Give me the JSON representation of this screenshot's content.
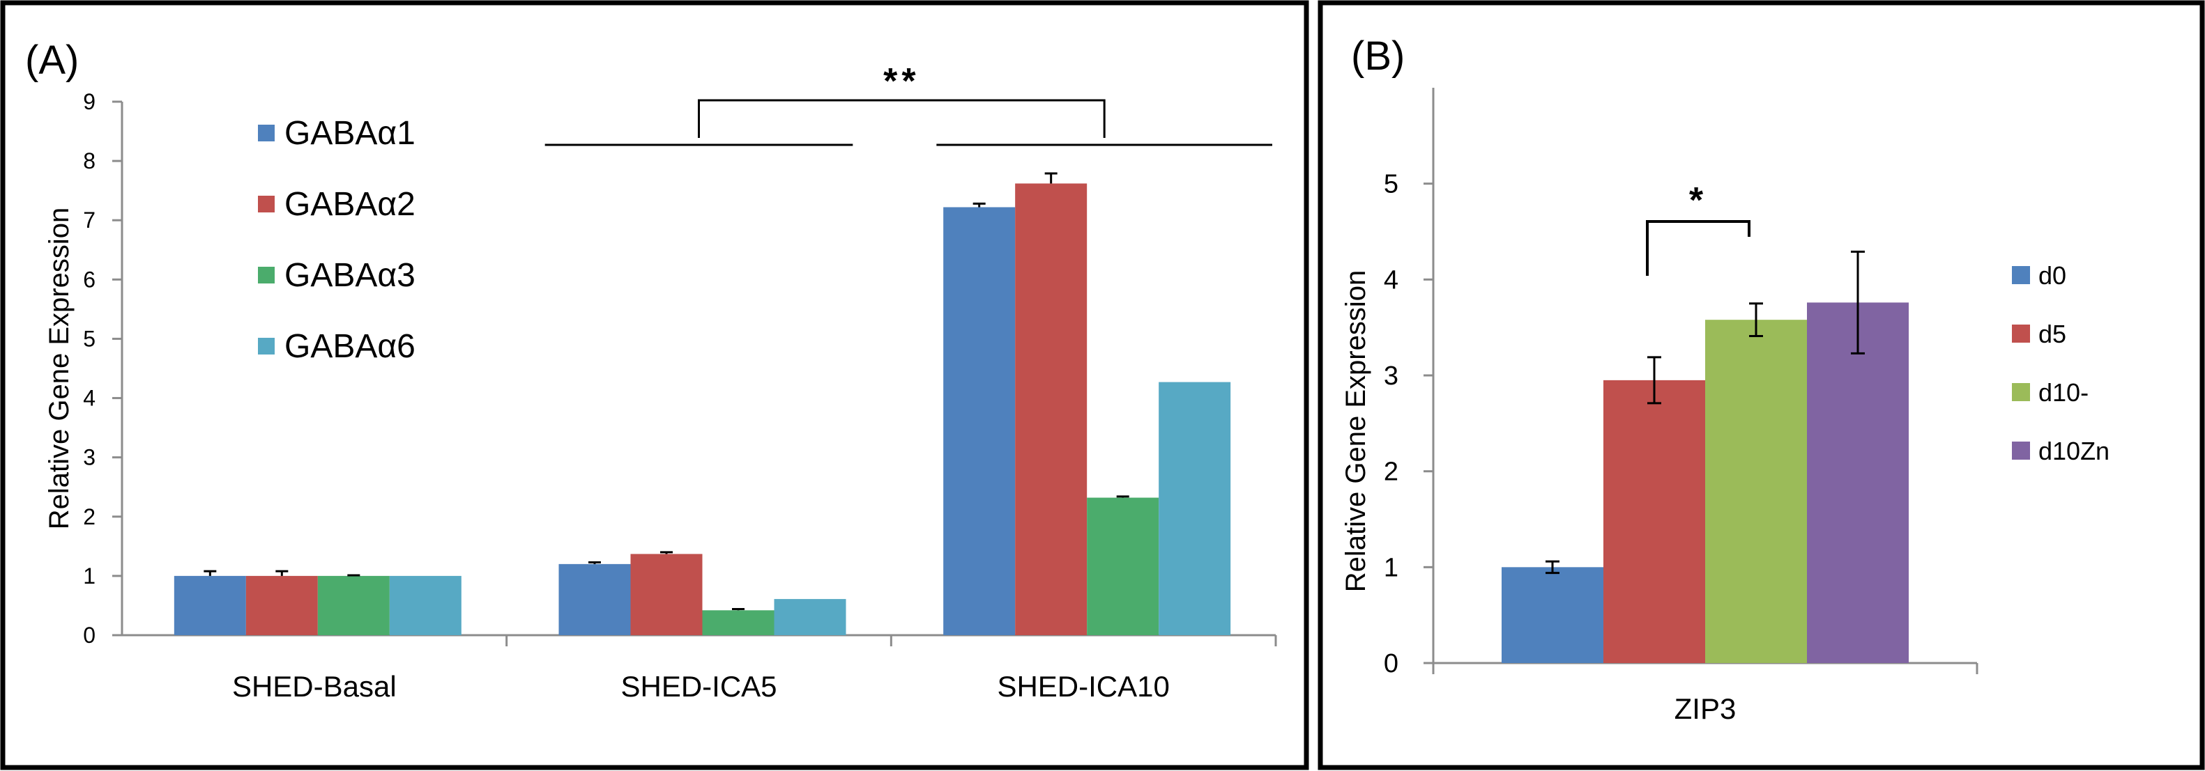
{
  "chart_data": [
    {
      "panel": "(A)",
      "type": "bar",
      "title": "",
      "xlabel": "",
      "ylabel": "Relative Gene Expression",
      "ylim": [
        0,
        9
      ],
      "yticks": [
        0,
        1,
        2,
        3,
        4,
        5,
        6,
        7,
        8,
        9
      ],
      "grid": false,
      "legend_position": "top-left",
      "categories": [
        "SHED-Basal",
        "SHED-ICA5",
        "SHED-ICA10"
      ],
      "series": [
        {
          "name": "GABAα1",
          "color": "#4f81bd",
          "values": [
            1.0,
            1.2,
            7.22
          ],
          "errors": [
            0.08,
            0.03,
            0.06
          ]
        },
        {
          "name": "GABAα2",
          "color": "#c0504d",
          "values": [
            1.0,
            1.37,
            7.62
          ],
          "errors": [
            0.08,
            0.03,
            0.17
          ]
        },
        {
          "name": "GABAα3",
          "color": "#4bac6c",
          "values": [
            1.0,
            0.42,
            2.32
          ],
          "errors": [
            0.01,
            0.02,
            0.02
          ]
        },
        {
          "name": "GABAα6",
          "color": "#57a9c4",
          "values": [
            1.0,
            0.61,
            4.27
          ],
          "errors": [
            0.0,
            0.0,
            0.0
          ]
        }
      ],
      "annotations": [
        {
          "text": "**",
          "between": [
            "SHED-ICA5",
            "SHED-ICA10"
          ],
          "y": 8.9
        }
      ]
    },
    {
      "panel": "(B)",
      "type": "bar",
      "title": "",
      "xlabel": "",
      "ylabel": "Relative Gene Expression",
      "ylim": [
        0,
        6
      ],
      "yticks": [
        0,
        1,
        2,
        3,
        4,
        5
      ],
      "grid": false,
      "legend_position": "right",
      "categories": [
        "ZIP3"
      ],
      "series": [
        {
          "name": "d0",
          "color": "#4f81bd",
          "values": [
            1.0
          ],
          "errors": [
            0.06
          ]
        },
        {
          "name": "d5",
          "color": "#c0504d",
          "values": [
            2.95
          ],
          "errors": [
            0.24
          ]
        },
        {
          "name": "d10-",
          "color": "#9bbb59",
          "values": [
            3.58
          ],
          "errors": [
            0.17
          ]
        },
        {
          "name": "d10Zn",
          "color": "#8064a2",
          "values": [
            3.76
          ],
          "errors": [
            0.53
          ]
        }
      ],
      "annotations": [
        {
          "text": "*",
          "between": [
            "d5",
            "d10-"
          ],
          "y": 4.3
        }
      ]
    }
  ]
}
